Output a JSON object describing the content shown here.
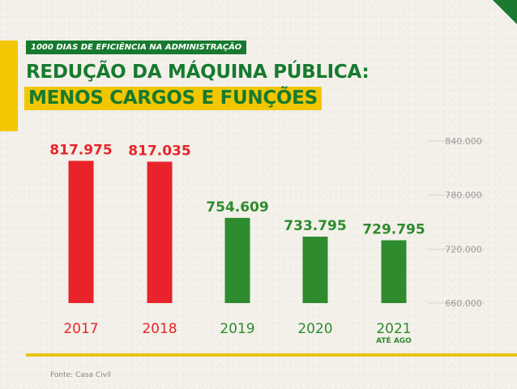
{
  "header": {
    "tag": "1000 DIAS DE EFICIÊNCIA NA ADMINISTRAÇÃO",
    "title_line1": "REDUÇÃO DA MÁQUINA PÚBLICA:",
    "title_line2": "MENOS CARGOS E FUNÇÕES"
  },
  "source": "Fonte: Casa Civil",
  "colors": {
    "green": "#177a2f",
    "red": "#e8242a",
    "yellow": "#f2c700",
    "axis_text": "#999999"
  },
  "chart_data": {
    "type": "bar",
    "categories": [
      "2017",
      "2018",
      "2019",
      "2020",
      "2021"
    ],
    "category_sublabels": [
      "",
      "",
      "",
      "",
      "ATÉ AGO"
    ],
    "values": [
      817975,
      817035,
      754609,
      733795,
      729795
    ],
    "data_labels": [
      "817.975",
      "817.035",
      "754.609",
      "733.795",
      "729.795"
    ],
    "bar_colors": [
      "#e8242a",
      "#e8242a",
      "#2e8b2e",
      "#2e8b2e",
      "#2e8b2e"
    ],
    "label_colors": [
      "#e8242a",
      "#e8242a",
      "#2e8b2e",
      "#2e8b2e",
      "#2e8b2e"
    ],
    "ylim": [
      660000,
      840000
    ],
    "yticks": [
      660000,
      720000,
      780000,
      840000
    ],
    "ytick_labels": [
      "660.000",
      "720.000",
      "780.000",
      "840.000"
    ],
    "y_axis_side": "right",
    "grid": false
  }
}
